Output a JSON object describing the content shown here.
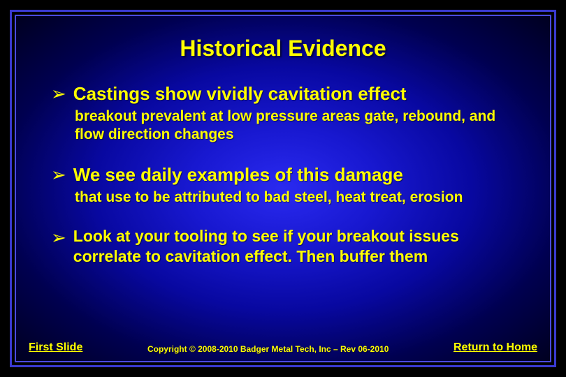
{
  "colors": {
    "text": "#ffff00",
    "frame_outer": "#3a3ad0",
    "frame_inner": "#4a4ae0",
    "bg_center": "#2a2af0",
    "bg_edge": "#000020"
  },
  "title": "Historical Evidence",
  "bullets": [
    {
      "main": "Castings show vividly cavitation effect",
      "sub": "breakout prevalent at low pressure areas gate, rebound, and flow direction changes"
    },
    {
      "main": "We see daily examples of this damage",
      "sub": "that use to be attributed to bad steel, heat treat, erosion"
    },
    {
      "main": "Look at your tooling to see if your breakout issues correlate to cavitation effect.  Then buffer them",
      "sub": ""
    }
  ],
  "footer": {
    "left": "First Slide",
    "center": "Copyright © 2008-2010 Badger Metal Tech, Inc – Rev 06-2010",
    "right": "Return to Home"
  }
}
